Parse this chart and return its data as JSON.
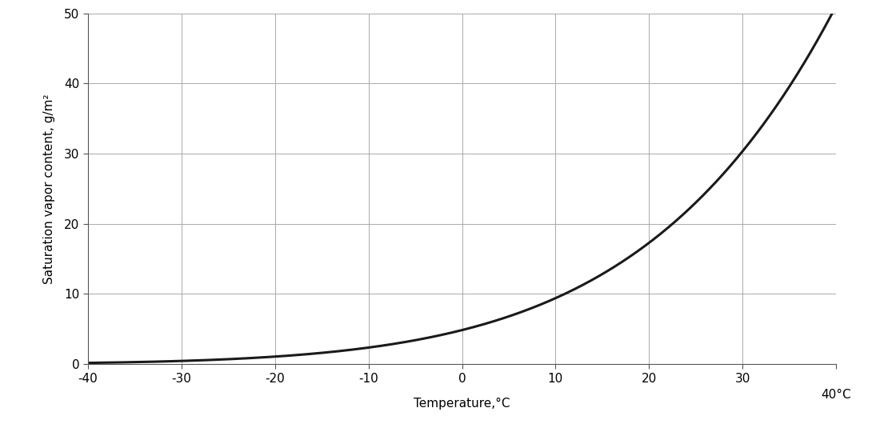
{
  "title": "",
  "xlabel": "Temperature,°C",
  "ylabel": "Saturation vapor content, g/m²",
  "xlim": [
    -40,
    40
  ],
  "ylim": [
    0,
    50
  ],
  "xticks": [
    -40,
    -30,
    -20,
    -10,
    0,
    10,
    20,
    30,
    40
  ],
  "yticks": [
    0,
    10,
    20,
    30,
    40,
    50
  ],
  "line_color": "#1a1a1a",
  "line_width": 2.2,
  "grid_color": "#aaaaaa",
  "background_color": "#ffffff",
  "figsize": [
    11.0,
    5.55
  ],
  "dpi": 100
}
